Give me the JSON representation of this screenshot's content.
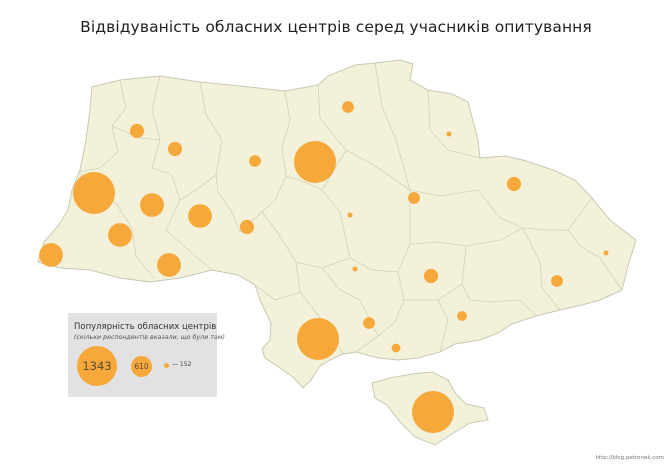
{
  "title": "Відвідуваність обласних центрів серед учасників опитування",
  "legend": {
    "title": "Популярність обласних центрів",
    "note": "(скільки респондентів вказали, що були там)",
    "max_label": "1343",
    "mid_label": "610",
    "min_label": "— 152"
  },
  "credit": "http://blog.petronek.com",
  "colors": {
    "land": "#f3f1da",
    "border": "#c9c8b4",
    "bubble": "#f7a83a",
    "legend_bg": "#e2e2e2"
  },
  "map_data": {
    "scale": {
      "min_value": 152,
      "mid_value": 610,
      "max_value": 1343
    },
    "cities": [
      {
        "id": "city-1",
        "value": 1343
      },
      {
        "id": "city-2",
        "value": 1343
      },
      {
        "id": "city-3",
        "value": 1343
      },
      {
        "id": "city-4",
        "value": 1343
      },
      {
        "id": "city-5",
        "value": 610
      },
      {
        "id": "city-6",
        "value": 610
      },
      {
        "id": "city-7",
        "value": 610
      },
      {
        "id": "city-8",
        "value": 610
      },
      {
        "id": "city-9",
        "value": 610
      },
      {
        "id": "city-10",
        "value": 340
      },
      {
        "id": "city-11",
        "value": 340
      },
      {
        "id": "city-12",
        "value": 340
      },
      {
        "id": "city-13",
        "value": 340
      },
      {
        "id": "city-14",
        "value": 340
      },
      {
        "id": "city-15",
        "value": 280
      },
      {
        "id": "city-16",
        "value": 280
      },
      {
        "id": "city-17",
        "value": 280
      },
      {
        "id": "city-18",
        "value": 280
      },
      {
        "id": "city-19",
        "value": 280
      },
      {
        "id": "city-20",
        "value": 240
      },
      {
        "id": "city-21",
        "value": 220
      },
      {
        "id": "city-22",
        "value": 152
      },
      {
        "id": "city-23",
        "value": 152
      },
      {
        "id": "city-24",
        "value": 152
      }
    ]
  }
}
